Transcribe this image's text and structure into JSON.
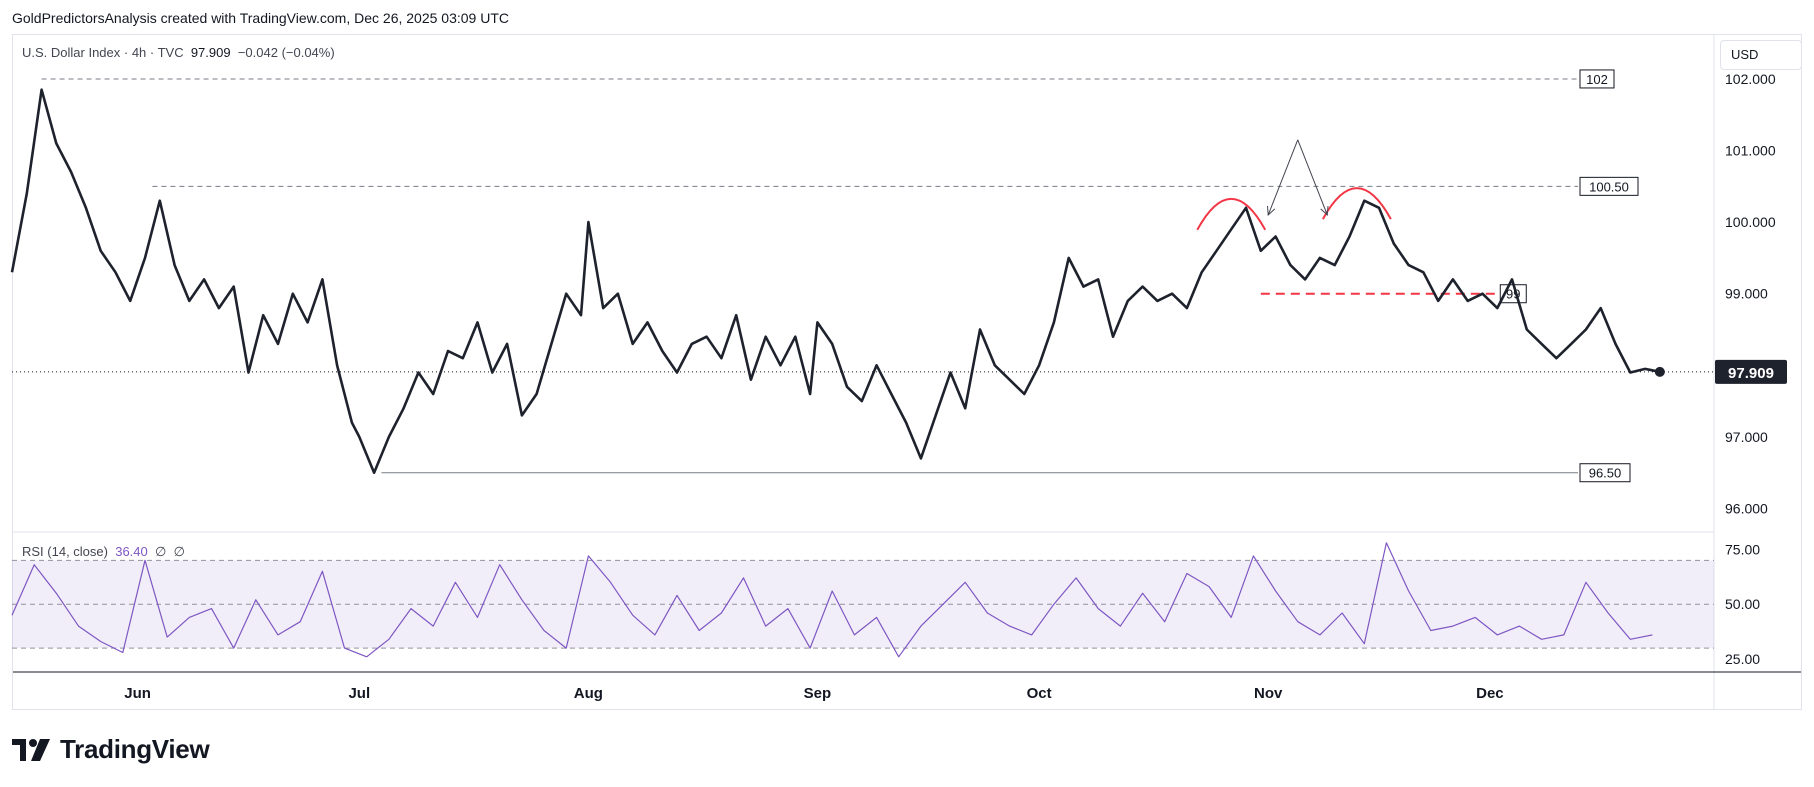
{
  "header": {
    "attribution": "GoldPredictorsAnalysis created with TradingView.com, Dec 26, 2025 03:09 UTC"
  },
  "legend": {
    "symbol": "U.S. Dollar Index · 4h · TVC",
    "price": "97.909",
    "change": "−0.042 (−0.04%)"
  },
  "currency_button": {
    "label": "USD"
  },
  "rsi_legend": {
    "label": "RSI (14, close)",
    "value": "36.40",
    "extra1": "∅",
    "extra2": "∅"
  },
  "brand": {
    "name": "TradingView"
  },
  "colors": {
    "price_line": "#1e222d",
    "rsi_line": "#7e57c2",
    "rsi_band": "#7e57c2",
    "pattern_red": "#f23645",
    "level_line": "#787b86"
  },
  "chart_data": {
    "type": "line",
    "symbol": "U.S. Dollar Index",
    "interval": "4h",
    "x_labels": [
      "Jun",
      "Jul",
      "Aug",
      "Sep",
      "Oct",
      "Nov",
      "Dec"
    ],
    "x_label_positions_days": [
      17,
      47,
      78,
      109,
      139,
      170,
      200
    ],
    "price_axis": {
      "ticks": [
        102,
        101,
        100,
        99,
        97,
        96
      ],
      "tick_labels": [
        "102.000",
        "101.000",
        "100.000",
        "99.000",
        "97.000",
        "96.000"
      ],
      "range": [
        95.7,
        102.6
      ],
      "current_value": 97.909,
      "current_label": "97.909"
    },
    "series": [
      {
        "x_days": [
          0,
          2,
          4,
          6,
          8,
          10,
          12,
          14,
          16,
          18,
          20,
          22,
          24,
          26,
          28,
          30,
          32,
          34,
          36,
          38,
          40,
          42,
          44,
          46,
          47,
          49,
          51,
          53,
          55,
          57,
          59,
          61,
          63,
          65,
          67,
          69,
          71,
          73,
          75,
          77,
          78,
          80,
          82,
          84,
          86,
          88,
          90,
          92,
          94,
          96,
          98,
          100,
          102,
          104,
          106,
          108,
          109,
          111,
          113,
          115,
          117,
          119,
          121,
          123,
          125,
          127,
          129,
          131,
          133,
          135,
          137,
          139,
          141,
          143,
          145,
          147,
          149,
          151,
          153,
          155,
          157,
          159,
          161,
          163,
          165,
          167,
          169,
          171,
          173,
          175,
          177,
          179,
          181,
          183,
          185,
          187,
          189,
          191,
          193,
          195,
          197,
          199,
          201,
          203,
          205,
          207,
          209,
          211,
          213,
          215,
          217,
          219,
          221,
          223
        ],
        "y": [
          99.3,
          100.4,
          101.85,
          101.1,
          100.7,
          100.2,
          99.6,
          99.3,
          98.9,
          99.5,
          100.3,
          99.4,
          98.9,
          99.2,
          98.8,
          99.1,
          97.9,
          98.7,
          98.3,
          99.0,
          98.6,
          99.2,
          98.0,
          97.2,
          97.0,
          96.5,
          97.0,
          97.4,
          97.9,
          97.6,
          98.2,
          98.1,
          98.6,
          97.9,
          98.3,
          97.3,
          97.6,
          98.3,
          99.0,
          98.7,
          100.0,
          98.8,
          99.0,
          98.3,
          98.6,
          98.2,
          97.9,
          98.3,
          98.4,
          98.1,
          98.7,
          97.8,
          98.4,
          98.0,
          98.4,
          97.6,
          98.6,
          98.3,
          97.7,
          97.5,
          98.0,
          97.6,
          97.2,
          96.7,
          97.3,
          97.9,
          97.4,
          98.5,
          98.0,
          97.8,
          97.6,
          98.0,
          98.6,
          99.5,
          99.1,
          99.2,
          98.4,
          98.9,
          99.1,
          98.9,
          99.0,
          98.8,
          99.3,
          99.6,
          99.9,
          100.2,
          99.6,
          99.8,
          99.4,
          99.2,
          99.5,
          99.4,
          99.8,
          100.3,
          100.2,
          99.7,
          99.4,
          99.3,
          98.9,
          99.2,
          98.9,
          99.0,
          98.8,
          99.2,
          98.5,
          98.3,
          98.1,
          98.3,
          98.5,
          98.8,
          98.3,
          97.9,
          97.95,
          97.909
        ]
      }
    ],
    "levels": [
      {
        "value": 102,
        "label": "102",
        "style": "dashed",
        "from_day": 4
      },
      {
        "value": 100.5,
        "label": "100.50",
        "style": "dashed",
        "from_day": 19
      },
      {
        "value": 99,
        "label": "99",
        "style": "red-dashed",
        "from_day": 169
      },
      {
        "value": 96.5,
        "label": "96.50",
        "style": "solid",
        "from_day": 50
      }
    ],
    "rsi": {
      "label": "RSI (14, close)",
      "value": 36.4,
      "ticks": [
        75,
        50,
        25
      ],
      "tick_labels": [
        "75.00",
        "50.00",
        "25.00"
      ],
      "band": [
        30,
        70
      ],
      "range": [
        20,
        82
      ],
      "x_days": [
        0,
        3,
        6,
        9,
        12,
        15,
        18,
        21,
        24,
        27,
        30,
        33,
        36,
        39,
        42,
        45,
        48,
        51,
        54,
        57,
        60,
        63,
        66,
        69,
        72,
        75,
        78,
        81,
        84,
        87,
        90,
        93,
        96,
        99,
        102,
        105,
        108,
        111,
        114,
        117,
        120,
        123,
        126,
        129,
        132,
        135,
        138,
        141,
        144,
        147,
        150,
        153,
        156,
        159,
        162,
        165,
        168,
        171,
        174,
        177,
        180,
        183,
        186,
        189,
        192,
        195,
        198,
        201,
        204,
        207,
        210,
        213,
        216,
        219,
        222
      ],
      "y": [
        45,
        68,
        55,
        40,
        33,
        28,
        70,
        35,
        44,
        48,
        30,
        52,
        36,
        42,
        65,
        30,
        26,
        34,
        48,
        40,
        60,
        44,
        68,
        52,
        38,
        30,
        72,
        60,
        45,
        36,
        54,
        38,
        46,
        62,
        40,
        48,
        30,
        56,
        36,
        44,
        26,
        40,
        50,
        60,
        46,
        40,
        36,
        50,
        62,
        48,
        40,
        55,
        42,
        64,
        58,
        44,
        72,
        56,
        42,
        36,
        46,
        32,
        78,
        56,
        38,
        40,
        44,
        36,
        40,
        34,
        36,
        60,
        46,
        34,
        36
      ]
    },
    "annotations": [
      {
        "type": "arc",
        "color": "#f23645",
        "center_day": 165,
        "value": 100.2,
        "description": "left shoulder"
      },
      {
        "type": "arc",
        "color": "#f23645",
        "center_day": 182,
        "value": 100.35,
        "description": "right shoulder"
      },
      {
        "type": "arrow",
        "from_day": 174,
        "from_value": 101.15,
        "to_day": 170,
        "to_value": 100.1
      },
      {
        "type": "arrow",
        "from_day": 174,
        "from_value": 101.15,
        "to_day": 178,
        "to_value": 100.1
      }
    ]
  }
}
